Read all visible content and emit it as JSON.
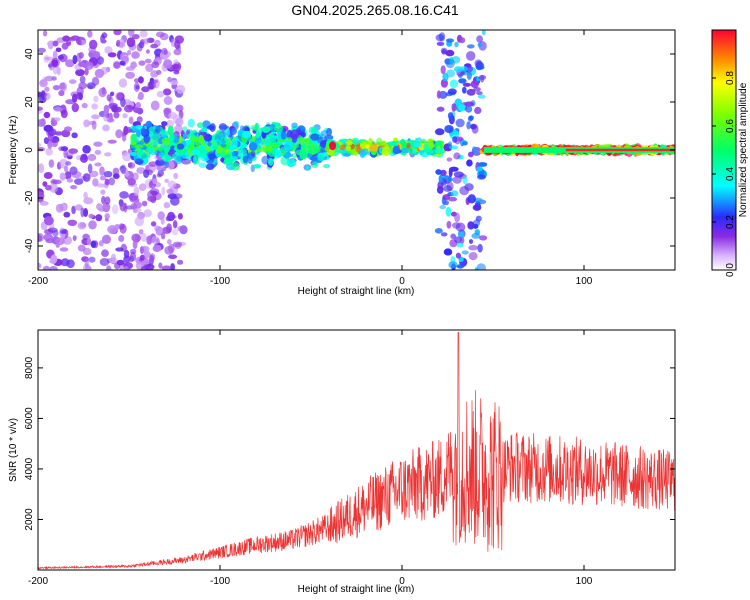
{
  "title": "GN04.2025.265.08.16.C41",
  "chart_data": [
    {
      "type": "heatmap",
      "xlabel": "Height of straight line (km)",
      "ylabel": "Frequency (Hz)",
      "xlim": [
        -200,
        150
      ],
      "ylim": [
        -50,
        50
      ],
      "xticks": [
        -200,
        -100,
        0,
        100
      ],
      "yticks": [
        -40,
        -20,
        0,
        20,
        40
      ],
      "colorbar": {
        "label": "Normalized spectral amplitude",
        "range": [
          0,
          1
        ],
        "ticks": [
          0.0,
          0.2,
          0.4,
          0.6,
          0.8
        ]
      },
      "regions": [
        {
          "x": [
            -200,
            -120
          ],
          "freq_spread": 50,
          "amplitude": 0.15
        },
        {
          "x": [
            -148,
            -40
          ],
          "freq_center": 2,
          "freq_spread": 10,
          "amplitude": 0.4
        },
        {
          "x": [
            -40,
            22
          ],
          "freq_center": 1,
          "freq_spread": 3,
          "amplitude": 0.6
        },
        {
          "x": [
            20,
            45
          ],
          "freq_spread": 50,
          "amplitude": 0.3
        },
        {
          "x": [
            45,
            150
          ],
          "freq_center": 0,
          "freq_spread": 1,
          "amplitude": 0.95
        }
      ]
    },
    {
      "type": "line",
      "xlabel": "Height of straight line (km)",
      "ylabel": "SNR (10 * v/v)",
      "xlim": [
        -200,
        150
      ],
      "ylim": [
        0,
        9500
      ],
      "xticks": [
        -200,
        -100,
        0,
        100
      ],
      "yticks": [
        2000,
        4000,
        6000,
        8000
      ],
      "color": "#ee3333",
      "envelope": [
        {
          "x": -200,
          "y": 80
        },
        {
          "x": -150,
          "y": 150
        },
        {
          "x": -120,
          "y": 400
        },
        {
          "x": -100,
          "y": 700
        },
        {
          "x": -80,
          "y": 1000
        },
        {
          "x": -60,
          "y": 1200
        },
        {
          "x": -40,
          "y": 1700
        },
        {
          "x": -20,
          "y": 2500
        },
        {
          "x": 0,
          "y": 3200
        },
        {
          "x": 20,
          "y": 3600
        },
        {
          "x": 30,
          "y": 4200
        },
        {
          "x": 40,
          "y": 4000
        },
        {
          "x": 50,
          "y": 3800
        },
        {
          "x": 60,
          "y": 4100
        },
        {
          "x": 80,
          "y": 4000
        },
        {
          "x": 100,
          "y": 3900
        },
        {
          "x": 120,
          "y": 3750
        },
        {
          "x": 150,
          "y": 3500
        }
      ],
      "peak": {
        "x": 31,
        "y": 9400
      }
    }
  ]
}
